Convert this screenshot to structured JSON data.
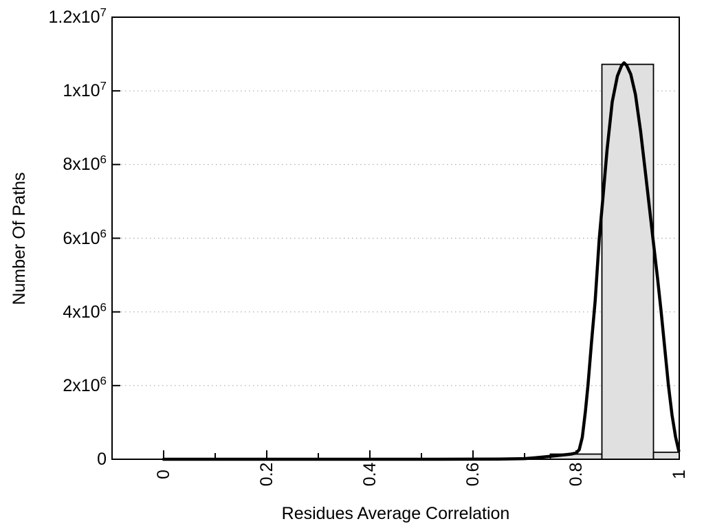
{
  "chart_data": {
    "type": "histogram_with_fitted_curve",
    "title": "",
    "xlabel": "Residues Average Correlation",
    "ylabel": "Number Of Paths",
    "xlim": [
      -0.1,
      1.0
    ],
    "ylim": [
      0,
      12000000
    ],
    "grid": {
      "horizontal_dotted_at_y_major_ticks": true,
      "vertical": false,
      "color": "#a8a8a8"
    },
    "legend": "none",
    "colors": {
      "bar_fill": "#e0e0e0",
      "bar_edge": "#000000",
      "curve": "#000000",
      "axis": "#000000",
      "background": "#ffffff"
    },
    "x_ticks": {
      "major_values": [
        0,
        0.2,
        0.4,
        0.6,
        0.8,
        1
      ],
      "major_labels": [
        "0",
        "0.2",
        "0.4",
        "0.6",
        "0.8",
        "1"
      ],
      "minor_values": [
        0.1,
        0.3,
        0.5,
        0.7,
        0.9
      ]
    },
    "y_ticks": [
      {
        "value": 0,
        "mantissa": "0",
        "exponent": ""
      },
      {
        "value": 2000000,
        "mantissa": "2x10",
        "exponent": "6"
      },
      {
        "value": 4000000,
        "mantissa": "4x10",
        "exponent": "6"
      },
      {
        "value": 6000000,
        "mantissa": "6x10",
        "exponent": "6"
      },
      {
        "value": 8000000,
        "mantissa": "8x10",
        "exponent": "6"
      },
      {
        "value": 10000000,
        "mantissa": "1x10",
        "exponent": "7"
      },
      {
        "value": 12000000,
        "mantissa": "1.2x10",
        "exponent": "7"
      }
    ],
    "bars": {
      "bin_width": 0.1,
      "bins": [
        {
          "center": 0.8,
          "count": 140000
        },
        {
          "center": 0.9,
          "count": 10720000
        },
        {
          "center": 1.0,
          "count": 190000
        }
      ]
    },
    "curve_points": [
      [
        0.0,
        0
      ],
      [
        0.1,
        0
      ],
      [
        0.2,
        0
      ],
      [
        0.3,
        0
      ],
      [
        0.4,
        0
      ],
      [
        0.5,
        0
      ],
      [
        0.58,
        2000
      ],
      [
        0.65,
        6000
      ],
      [
        0.7,
        16000
      ],
      [
        0.72,
        40000
      ],
      [
        0.75,
        80000
      ],
      [
        0.77,
        110000
      ],
      [
        0.79,
        140000
      ],
      [
        0.8,
        170000
      ],
      [
        0.806,
        260000
      ],
      [
        0.812,
        600000
      ],
      [
        0.818,
        1300000
      ],
      [
        0.823,
        2000000
      ],
      [
        0.83,
        3200000
      ],
      [
        0.837,
        4300000
      ],
      [
        0.845,
        6000000
      ],
      [
        0.852,
        7100000
      ],
      [
        0.86,
        8400000
      ],
      [
        0.87,
        9700000
      ],
      [
        0.88,
        10400000
      ],
      [
        0.888,
        10680000
      ],
      [
        0.893,
        10760000
      ],
      [
        0.898,
        10690000
      ],
      [
        0.906,
        10450000
      ],
      [
        0.915,
        9900000
      ],
      [
        0.925,
        8900000
      ],
      [
        0.935,
        7700000
      ],
      [
        0.949,
        6000000
      ],
      [
        0.958,
        4900000
      ],
      [
        0.965,
        4000000
      ],
      [
        0.972,
        3000000
      ],
      [
        0.979,
        2000000
      ],
      [
        0.986,
        1200000
      ],
      [
        0.993,
        600000
      ],
      [
        0.999,
        230000
      ]
    ]
  }
}
